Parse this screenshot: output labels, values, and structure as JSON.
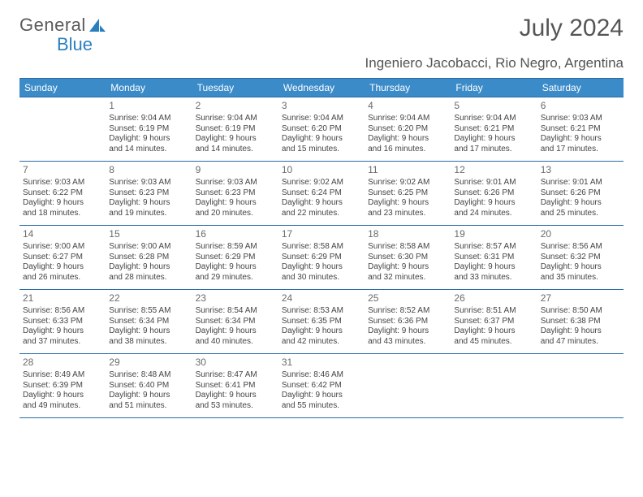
{
  "logo": {
    "text_a": "General",
    "text_b": "Blue"
  },
  "title": "July 2024",
  "location": "Ingeniero Jacobacci, Rio Negro, Argentina",
  "colors": {
    "header_bg": "#3b8bc8",
    "border": "#2a6ca8",
    "title_color": "#555",
    "text": "#444"
  },
  "daynames": [
    "Sunday",
    "Monday",
    "Tuesday",
    "Wednesday",
    "Thursday",
    "Friday",
    "Saturday"
  ],
  "weeks": [
    [
      null,
      {
        "n": "1",
        "sr": "Sunrise: 9:04 AM",
        "ss": "Sunset: 6:19 PM",
        "d1": "Daylight: 9 hours",
        "d2": "and 14 minutes."
      },
      {
        "n": "2",
        "sr": "Sunrise: 9:04 AM",
        "ss": "Sunset: 6:19 PM",
        "d1": "Daylight: 9 hours",
        "d2": "and 14 minutes."
      },
      {
        "n": "3",
        "sr": "Sunrise: 9:04 AM",
        "ss": "Sunset: 6:20 PM",
        "d1": "Daylight: 9 hours",
        "d2": "and 15 minutes."
      },
      {
        "n": "4",
        "sr": "Sunrise: 9:04 AM",
        "ss": "Sunset: 6:20 PM",
        "d1": "Daylight: 9 hours",
        "d2": "and 16 minutes."
      },
      {
        "n": "5",
        "sr": "Sunrise: 9:04 AM",
        "ss": "Sunset: 6:21 PM",
        "d1": "Daylight: 9 hours",
        "d2": "and 17 minutes."
      },
      {
        "n": "6",
        "sr": "Sunrise: 9:03 AM",
        "ss": "Sunset: 6:21 PM",
        "d1": "Daylight: 9 hours",
        "d2": "and 17 minutes."
      }
    ],
    [
      {
        "n": "7",
        "sr": "Sunrise: 9:03 AM",
        "ss": "Sunset: 6:22 PM",
        "d1": "Daylight: 9 hours",
        "d2": "and 18 minutes."
      },
      {
        "n": "8",
        "sr": "Sunrise: 9:03 AM",
        "ss": "Sunset: 6:23 PM",
        "d1": "Daylight: 9 hours",
        "d2": "and 19 minutes."
      },
      {
        "n": "9",
        "sr": "Sunrise: 9:03 AM",
        "ss": "Sunset: 6:23 PM",
        "d1": "Daylight: 9 hours",
        "d2": "and 20 minutes."
      },
      {
        "n": "10",
        "sr": "Sunrise: 9:02 AM",
        "ss": "Sunset: 6:24 PM",
        "d1": "Daylight: 9 hours",
        "d2": "and 22 minutes."
      },
      {
        "n": "11",
        "sr": "Sunrise: 9:02 AM",
        "ss": "Sunset: 6:25 PM",
        "d1": "Daylight: 9 hours",
        "d2": "and 23 minutes."
      },
      {
        "n": "12",
        "sr": "Sunrise: 9:01 AM",
        "ss": "Sunset: 6:26 PM",
        "d1": "Daylight: 9 hours",
        "d2": "and 24 minutes."
      },
      {
        "n": "13",
        "sr": "Sunrise: 9:01 AM",
        "ss": "Sunset: 6:26 PM",
        "d1": "Daylight: 9 hours",
        "d2": "and 25 minutes."
      }
    ],
    [
      {
        "n": "14",
        "sr": "Sunrise: 9:00 AM",
        "ss": "Sunset: 6:27 PM",
        "d1": "Daylight: 9 hours",
        "d2": "and 26 minutes."
      },
      {
        "n": "15",
        "sr": "Sunrise: 9:00 AM",
        "ss": "Sunset: 6:28 PM",
        "d1": "Daylight: 9 hours",
        "d2": "and 28 minutes."
      },
      {
        "n": "16",
        "sr": "Sunrise: 8:59 AM",
        "ss": "Sunset: 6:29 PM",
        "d1": "Daylight: 9 hours",
        "d2": "and 29 minutes."
      },
      {
        "n": "17",
        "sr": "Sunrise: 8:58 AM",
        "ss": "Sunset: 6:29 PM",
        "d1": "Daylight: 9 hours",
        "d2": "and 30 minutes."
      },
      {
        "n": "18",
        "sr": "Sunrise: 8:58 AM",
        "ss": "Sunset: 6:30 PM",
        "d1": "Daylight: 9 hours",
        "d2": "and 32 minutes."
      },
      {
        "n": "19",
        "sr": "Sunrise: 8:57 AM",
        "ss": "Sunset: 6:31 PM",
        "d1": "Daylight: 9 hours",
        "d2": "and 33 minutes."
      },
      {
        "n": "20",
        "sr": "Sunrise: 8:56 AM",
        "ss": "Sunset: 6:32 PM",
        "d1": "Daylight: 9 hours",
        "d2": "and 35 minutes."
      }
    ],
    [
      {
        "n": "21",
        "sr": "Sunrise: 8:56 AM",
        "ss": "Sunset: 6:33 PM",
        "d1": "Daylight: 9 hours",
        "d2": "and 37 minutes."
      },
      {
        "n": "22",
        "sr": "Sunrise: 8:55 AM",
        "ss": "Sunset: 6:34 PM",
        "d1": "Daylight: 9 hours",
        "d2": "and 38 minutes."
      },
      {
        "n": "23",
        "sr": "Sunrise: 8:54 AM",
        "ss": "Sunset: 6:34 PM",
        "d1": "Daylight: 9 hours",
        "d2": "and 40 minutes."
      },
      {
        "n": "24",
        "sr": "Sunrise: 8:53 AM",
        "ss": "Sunset: 6:35 PM",
        "d1": "Daylight: 9 hours",
        "d2": "and 42 minutes."
      },
      {
        "n": "25",
        "sr": "Sunrise: 8:52 AM",
        "ss": "Sunset: 6:36 PM",
        "d1": "Daylight: 9 hours",
        "d2": "and 43 minutes."
      },
      {
        "n": "26",
        "sr": "Sunrise: 8:51 AM",
        "ss": "Sunset: 6:37 PM",
        "d1": "Daylight: 9 hours",
        "d2": "and 45 minutes."
      },
      {
        "n": "27",
        "sr": "Sunrise: 8:50 AM",
        "ss": "Sunset: 6:38 PM",
        "d1": "Daylight: 9 hours",
        "d2": "and 47 minutes."
      }
    ],
    [
      {
        "n": "28",
        "sr": "Sunrise: 8:49 AM",
        "ss": "Sunset: 6:39 PM",
        "d1": "Daylight: 9 hours",
        "d2": "and 49 minutes."
      },
      {
        "n": "29",
        "sr": "Sunrise: 8:48 AM",
        "ss": "Sunset: 6:40 PM",
        "d1": "Daylight: 9 hours",
        "d2": "and 51 minutes."
      },
      {
        "n": "30",
        "sr": "Sunrise: 8:47 AM",
        "ss": "Sunset: 6:41 PM",
        "d1": "Daylight: 9 hours",
        "d2": "and 53 minutes."
      },
      {
        "n": "31",
        "sr": "Sunrise: 8:46 AM",
        "ss": "Sunset: 6:42 PM",
        "d1": "Daylight: 9 hours",
        "d2": "and 55 minutes."
      },
      null,
      null,
      null
    ]
  ]
}
